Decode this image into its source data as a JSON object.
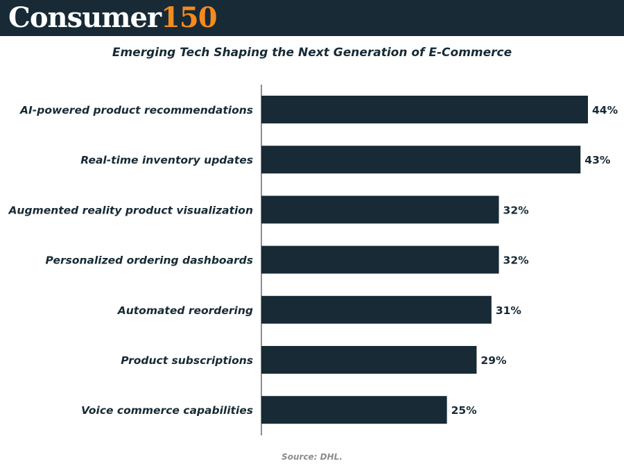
{
  "brand": {
    "word": "Consumer",
    "number": "150"
  },
  "colors": {
    "bar": "#172a35",
    "header_bg": "#172a35",
    "accent": "#f58a1f",
    "text": "#172a35",
    "source": "#8c8c8c"
  },
  "source": "Source: DHL.",
  "chart_data": {
    "type": "bar",
    "orientation": "horizontal",
    "title": "Emerging Tech Shaping the Next Generation of E-Commerce",
    "categories": [
      "AI-powered product recommendations",
      "Real-time inventory updates",
      "Augmented reality product visualization",
      "Personalized ordering dashboards",
      "Automated reordering",
      "Product subscriptions",
      "Voice commerce capabilities"
    ],
    "values": [
      44,
      43,
      32,
      32,
      31,
      29,
      25
    ],
    "value_labels": [
      "44%",
      "43%",
      "32%",
      "32%",
      "31%",
      "29%",
      "25%"
    ],
    "unit": "%",
    "xlim": [
      0,
      44
    ],
    "grid": false,
    "legend": "none"
  }
}
